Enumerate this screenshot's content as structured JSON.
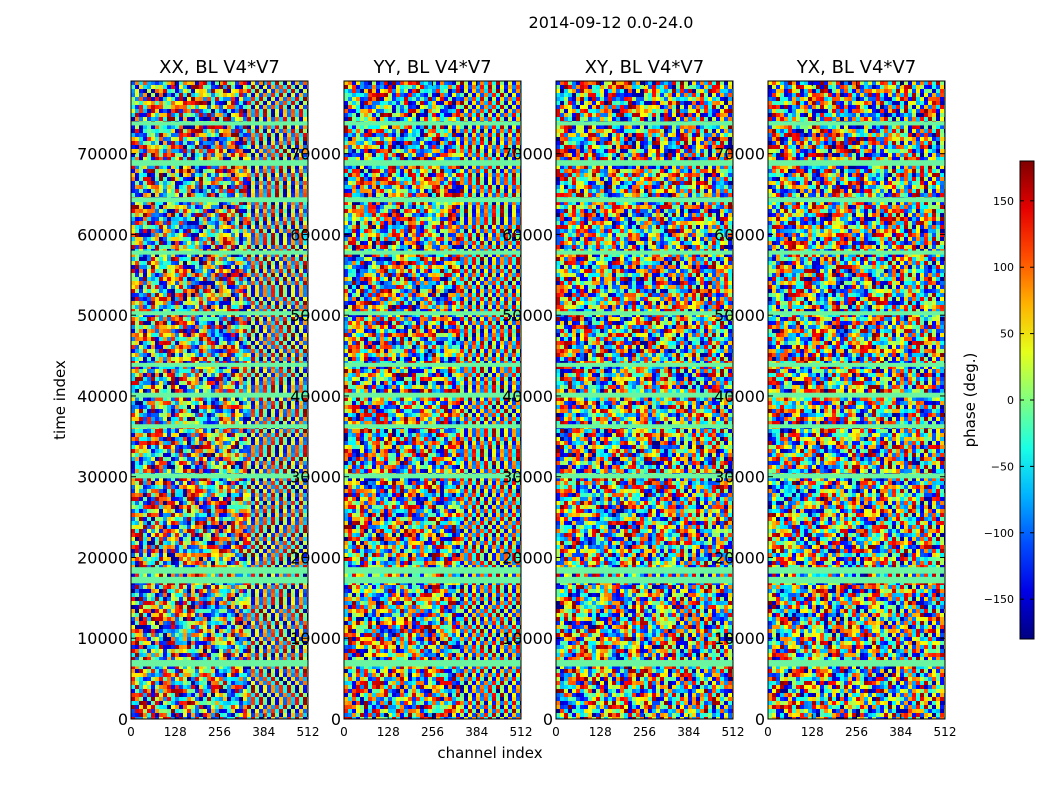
{
  "suptitle": "2014-09-12 0.0-24.0",
  "chart_data": {
    "type": "heatmap",
    "title": "2014-09-12 0.0-24.0",
    "xlabel": "channel index",
    "ylabel": "time index",
    "x_range": [
      0,
      512
    ],
    "x_ticks": [
      0,
      128,
      256,
      384,
      512
    ],
    "y_range": [
      0,
      79000
    ],
    "y_ticks": [
      0,
      10000,
      20000,
      30000,
      40000,
      50000,
      60000,
      70000
    ],
    "colormap": "jet",
    "colorbar": {
      "label": "phase (deg.)",
      "range": [
        -180,
        180
      ],
      "ticks": [
        -150,
        -100,
        -50,
        0,
        50,
        100,
        150
      ],
      "tick_labels": [
        "−150",
        "−100",
        "−50",
        "0",
        "50",
        "100",
        "150"
      ]
    },
    "panels": [
      {
        "title": "XX, BL V4*V7",
        "pol": "XX",
        "baseline": "V4*V7"
      },
      {
        "title": "YY, BL V4*V7",
        "pol": "YY",
        "baseline": "V4*V7"
      },
      {
        "title": "XY, BL V4*V7",
        "pol": "XY",
        "baseline": "V4*V7"
      },
      {
        "title": "YX, BL V4*V7",
        "pol": "YX",
        "baseline": "V4*V7"
      }
    ],
    "flagged_time_bands": [
      [
        6500,
        7300
      ],
      [
        16800,
        17600
      ],
      [
        18000,
        18800
      ],
      [
        29800,
        30400
      ],
      [
        36000,
        36500
      ],
      [
        39800,
        40400
      ],
      [
        43600,
        44100
      ],
      [
        50000,
        50500
      ],
      [
        57500,
        58000
      ],
      [
        64000,
        64600
      ],
      [
        68500,
        69200
      ],
      [
        73500,
        74000
      ]
    ],
    "colors": {
      "background": "#ffffff",
      "axis": "#000000",
      "band": "#6cf5a0"
    }
  }
}
